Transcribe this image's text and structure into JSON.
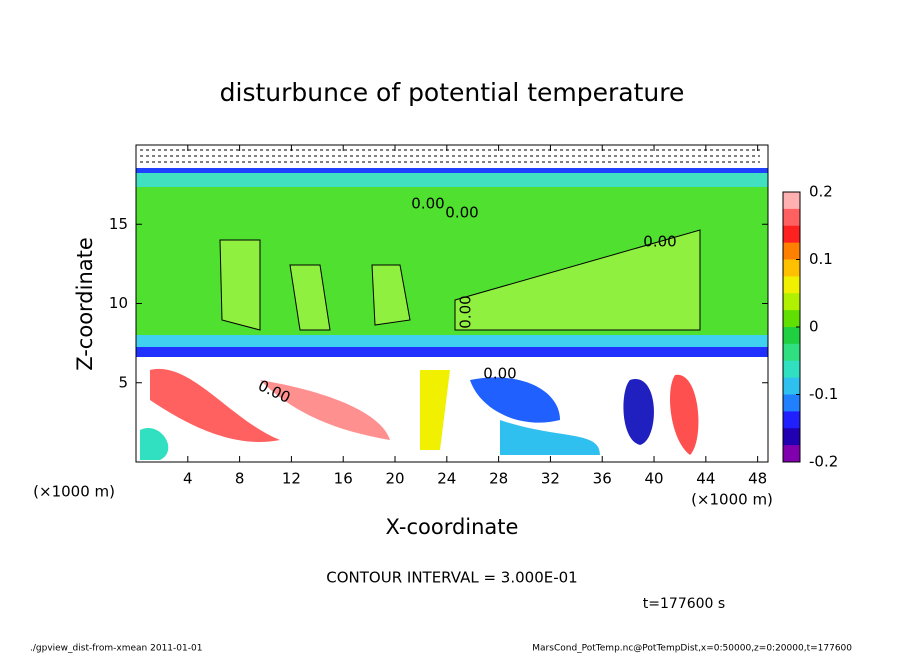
{
  "chart_data": {
    "type": "contour",
    "title": "disturbunce of potential temperature",
    "x_label": "X-coordinate",
    "y_label": "Z-coordinate",
    "x_unit": "(×1000 m)",
    "xlim": [
      0,
      48.8
    ],
    "xticks": [
      4,
      8,
      12,
      16,
      20,
      24,
      28,
      32,
      36,
      40,
      44,
      48
    ],
    "ylim": [
      0,
      20
    ],
    "yticks": [
      5,
      10,
      15
    ],
    "colorbar": {
      "lim": [
        -0.2,
        0.2
      ],
      "ticks": [
        0.2,
        0.1,
        0,
        -0.1,
        -0.2
      ],
      "colors": [
        "#ffb0b0",
        "#ff6060",
        "#ff2020",
        "#ff8000",
        "#ffc000",
        "#f0f000",
        "#b0f000",
        "#60e000",
        "#20d040",
        "#30e080",
        "#30e0c0",
        "#30c0f0",
        "#2080ff",
        "#2020ff",
        "#2000b0",
        "#8000b0"
      ]
    },
    "contour_label": "0.00",
    "contour_interval": "CONTOUR INTERVAL = 3.000E-01",
    "time_label": "t=177600 s",
    "footer_left": "./gpview_dist-from-xmean   2011-01-01",
    "footer_right": "MarsCond_PotTemp.nc@PotTempDist,x=0:50000,z=0:20000,t=177600"
  }
}
